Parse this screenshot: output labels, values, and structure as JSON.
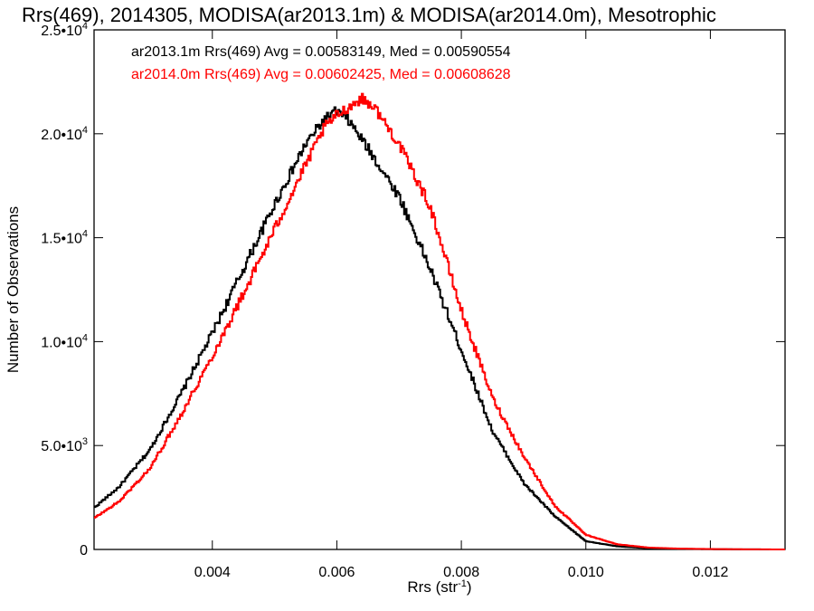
{
  "chart_data": {
    "type": "line",
    "title": "Rrs(469), 2014305, MODISA(ar2013.1m) & MODISA(ar2014.0m), Mesotrophic",
    "xlabel_base": "Rrs (str",
    "xlabel_exp": "-1",
    "xlabel_end": ")",
    "ylabel": "Number of Observations",
    "xlim": [
      0.0021,
      0.0132
    ],
    "ylim": [
      0,
      25000
    ],
    "grid": false,
    "legend_position": "top-left",
    "x_ticks": [
      {
        "value": 0.004,
        "label": "0.004"
      },
      {
        "value": 0.006,
        "label": "0.006"
      },
      {
        "value": 0.008,
        "label": "0.008"
      },
      {
        "value": 0.01,
        "label": "0.010"
      },
      {
        "value": 0.012,
        "label": "0.012"
      }
    ],
    "y_ticks": [
      {
        "value": 0,
        "mant": "0",
        "exp": ""
      },
      {
        "value": 5000,
        "mant": "5.0•10",
        "exp": "3"
      },
      {
        "value": 10000,
        "mant": "1.0•10",
        "exp": "4"
      },
      {
        "value": 15000,
        "mant": "1.5•10",
        "exp": "4"
      },
      {
        "value": 20000,
        "mant": "2.0•10",
        "exp": "4"
      },
      {
        "value": 25000,
        "mant": "2.5•10",
        "exp": "4"
      }
    ],
    "series": [
      {
        "name": "ar2013.1m",
        "legend": "ar2013.1m Rrs(469) Avg = 0.00583149, Med = 0.00590554",
        "color": "#000000",
        "x": [
          0.0021,
          0.0025,
          0.003,
          0.0035,
          0.004,
          0.0045,
          0.005,
          0.0055,
          0.0058,
          0.006,
          0.0062,
          0.0065,
          0.007,
          0.0075,
          0.008,
          0.0085,
          0.009,
          0.0095,
          0.01,
          0.0105,
          0.011,
          0.0115,
          0.012,
          0.0125,
          0.0132
        ],
        "y": [
          2000,
          3000,
          4800,
          7500,
          10400,
          13500,
          16600,
          19500,
          20700,
          21100,
          20600,
          19300,
          17000,
          13500,
          9600,
          5700,
          3200,
          1600,
          400,
          150,
          60,
          30,
          15,
          5,
          0
        ]
      },
      {
        "name": "ar2014.0m",
        "legend": "ar2014.0m Rrs(469) Avg = 0.00602425, Med = 0.00608628",
        "color": "#ff0000",
        "x": [
          0.0021,
          0.0025,
          0.003,
          0.0035,
          0.004,
          0.0045,
          0.005,
          0.0055,
          0.0058,
          0.006,
          0.0062,
          0.0064,
          0.0066,
          0.007,
          0.0075,
          0.008,
          0.0085,
          0.009,
          0.0095,
          0.01,
          0.0105,
          0.011,
          0.0115,
          0.012,
          0.0125,
          0.0132
        ],
        "y": [
          1500,
          2300,
          3900,
          6500,
          9300,
          12300,
          15400,
          18500,
          20300,
          20900,
          21300,
          21700,
          21300,
          19500,
          16500,
          11500,
          7300,
          4500,
          2100,
          700,
          250,
          90,
          40,
          20,
          8,
          0
        ]
      }
    ]
  }
}
